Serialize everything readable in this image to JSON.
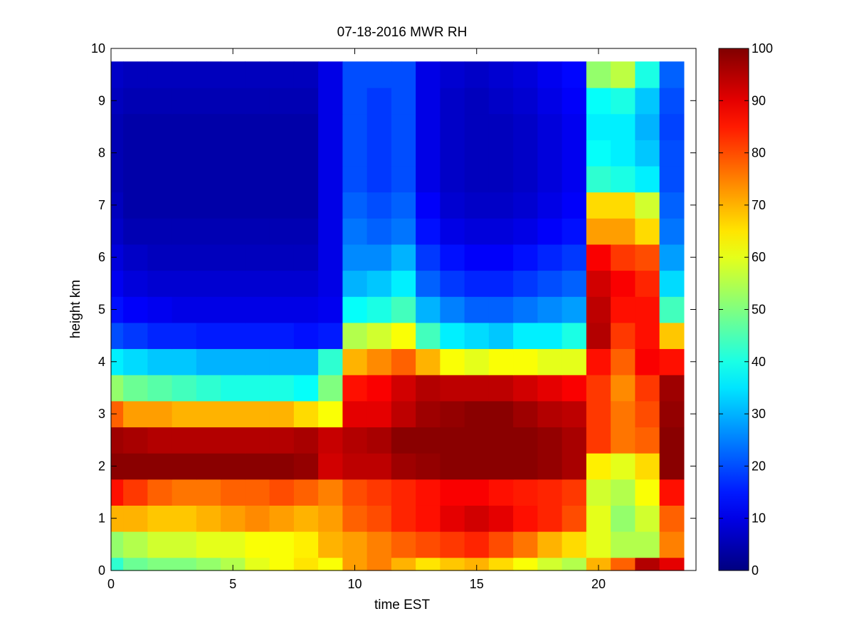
{
  "chart_data": {
    "type": "heatmap",
    "title": "07-18-2016 MWR RH",
    "xlabel": "time EST",
    "ylabel": "height km",
    "xlim": [
      0,
      24
    ],
    "ylim": [
      0,
      10
    ],
    "xticks": [
      0,
      5,
      10,
      15,
      20
    ],
    "yticks": [
      0,
      1,
      2,
      3,
      4,
      5,
      6,
      7,
      8,
      9,
      10
    ],
    "colorbar": {
      "min": 0,
      "max": 100,
      "ticks": [
        0,
        10,
        20,
        30,
        40,
        50,
        60,
        70,
        80,
        90,
        100
      ],
      "colormap": "jet"
    },
    "grid": false,
    "x_centers": [
      0,
      1,
      2,
      3,
      4,
      5,
      6,
      7,
      8,
      9,
      10,
      11,
      12,
      13,
      14,
      15,
      16,
      17,
      18,
      19,
      20,
      21,
      22,
      23
    ],
    "y_centers": [
      0,
      0.5,
      1,
      1.5,
      2,
      2.5,
      3,
      3.5,
      4,
      4.5,
      5,
      5.5,
      6,
      6.5,
      7,
      7.5,
      8,
      8.5,
      9,
      9.5
    ],
    "values": [
      [
        42,
        48,
        50,
        50,
        52,
        55,
        60,
        62,
        65,
        62,
        72,
        75,
        70,
        65,
        68,
        70,
        66,
        62,
        58,
        55,
        70,
        78,
        95,
        90
      ],
      [
        52,
        55,
        58,
        58,
        60,
        60,
        62,
        62,
        64,
        70,
        72,
        75,
        78,
        80,
        82,
        84,
        80,
        76,
        70,
        66,
        60,
        55,
        55,
        75
      ],
      [
        70,
        70,
        68,
        68,
        70,
        72,
        74,
        72,
        70,
        72,
        78,
        80,
        84,
        86,
        90,
        92,
        90,
        86,
        84,
        80,
        60,
        52,
        58,
        78
      ],
      [
        86,
        82,
        78,
        76,
        76,
        78,
        78,
        80,
        78,
        75,
        80,
        82,
        84,
        86,
        88,
        88,
        86,
        85,
        84,
        82,
        58,
        55,
        62,
        86
      ],
      [
        99,
        99,
        99,
        99,
        99,
        99,
        99,
        99,
        98,
        92,
        94,
        94,
        97,
        98,
        99,
        99,
        99,
        99,
        98,
        96,
        64,
        60,
        66,
        99
      ],
      [
        97,
        96,
        95,
        95,
        95,
        95,
        95,
        95,
        96,
        93,
        95,
        96,
        99,
        99,
        99,
        99,
        99,
        99,
        98,
        96,
        82,
        76,
        78,
        99
      ],
      [
        78,
        72,
        72,
        70,
        70,
        70,
        70,
        70,
        66,
        62,
        90,
        90,
        94,
        97,
        98,
        99,
        99,
        97,
        95,
        94,
        82,
        76,
        80,
        98
      ],
      [
        52,
        48,
        46,
        44,
        42,
        40,
        40,
        40,
        38,
        50,
        86,
        88,
        92,
        95,
        94,
        94,
        94,
        92,
        90,
        88,
        82,
        74,
        82,
        97
      ],
      [
        36,
        34,
        32,
        32,
        30,
        30,
        30,
        30,
        30,
        42,
        70,
        74,
        78,
        70,
        62,
        60,
        62,
        62,
        60,
        60,
        86,
        78,
        88,
        86
      ],
      [
        20,
        18,
        16,
        16,
        15,
        15,
        15,
        15,
        14,
        15,
        55,
        58,
        62,
        44,
        36,
        34,
        32,
        36,
        36,
        40,
        95,
        82,
        86,
        68
      ],
      [
        14,
        12,
        11,
        10,
        10,
        10,
        10,
        10,
        10,
        11,
        38,
        40,
        44,
        30,
        25,
        22,
        22,
        24,
        26,
        28,
        94,
        86,
        86,
        44
      ],
      [
        11,
        9,
        8,
        8,
        8,
        8,
        8,
        8,
        8,
        10,
        30,
        32,
        36,
        22,
        18,
        16,
        16,
        18,
        20,
        22,
        92,
        88,
        84,
        34
      ],
      [
        9,
        7,
        6,
        6,
        6,
        6,
        6,
        6,
        6,
        10,
        26,
        26,
        30,
        18,
        14,
        12,
        12,
        14,
        16,
        18,
        88,
        82,
        80,
        28
      ],
      [
        7,
        5,
        5,
        5,
        5,
        5,
        5,
        5,
        5,
        10,
        24,
        22,
        24,
        14,
        10,
        9,
        9,
        10,
        12,
        14,
        72,
        72,
        66,
        24
      ],
      [
        6,
        4,
        4,
        4,
        4,
        4,
        4,
        4,
        4,
        10,
        22,
        20,
        22,
        12,
        8,
        7,
        7,
        8,
        10,
        12,
        66,
        66,
        58,
        22
      ],
      [
        5,
        4,
        4,
        4,
        4,
        4,
        4,
        4,
        4,
        10,
        20,
        18,
        20,
        10,
        7,
        6,
        6,
        7,
        9,
        11,
        42,
        40,
        36,
        20
      ],
      [
        5,
        4,
        4,
        4,
        4,
        4,
        4,
        4,
        4,
        10,
        20,
        18,
        20,
        10,
        7,
        6,
        6,
        7,
        9,
        11,
        38,
        36,
        32,
        20
      ],
      [
        5,
        4,
        4,
        4,
        4,
        4,
        4,
        4,
        4,
        10,
        20,
        18,
        20,
        10,
        7,
        6,
        6,
        7,
        9,
        11,
        36,
        36,
        30,
        19
      ],
      [
        6,
        5,
        5,
        5,
        5,
        5,
        5,
        5,
        5,
        10,
        20,
        18,
        20,
        10,
        7,
        6,
        7,
        8,
        10,
        12,
        38,
        40,
        32,
        20
      ],
      [
        7,
        6,
        6,
        6,
        6,
        6,
        6,
        6,
        6,
        10,
        20,
        20,
        20,
        10,
        8,
        7,
        8,
        9,
        11,
        13,
        52,
        56,
        40,
        22
      ]
    ]
  }
}
